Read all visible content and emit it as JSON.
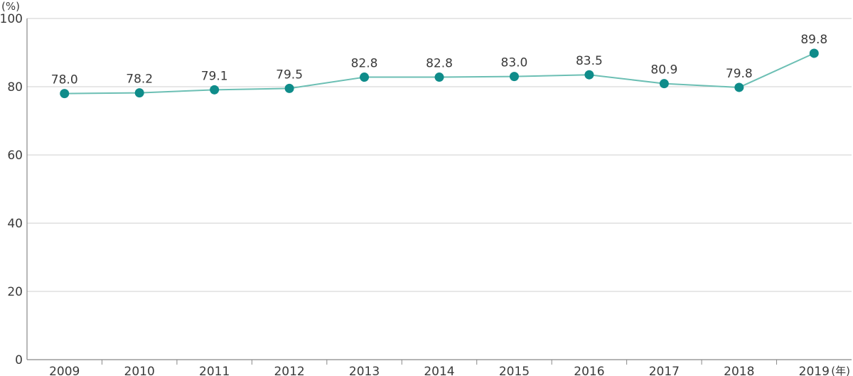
{
  "chart_data": {
    "type": "line",
    "x_unit_label": "(年)",
    "y_unit_label": "(%)",
    "categories": [
      "2009",
      "2010",
      "2011",
      "2012",
      "2013",
      "2014",
      "2015",
      "2016",
      "2017",
      "2018",
      "2019"
    ],
    "series": [
      {
        "values": [
          78.0,
          78.2,
          79.1,
          79.5,
          82.8,
          82.8,
          83.0,
          83.5,
          80.9,
          79.8,
          89.8
        ]
      }
    ],
    "data_labels": [
      "78.0",
      "78.2",
      "79.1",
      "79.5",
      "82.8",
      "82.8",
      "83.0",
      "83.5",
      "80.9",
      "79.8",
      "89.8"
    ],
    "ylim": [
      0,
      100
    ],
    "yticks": [
      0,
      20,
      40,
      60,
      80,
      100
    ],
    "grid": true,
    "colors": {
      "line": "#6cbfb4",
      "marker": "#0f8c8a",
      "grid": "#cfcfcf",
      "axis": "#888888"
    }
  }
}
